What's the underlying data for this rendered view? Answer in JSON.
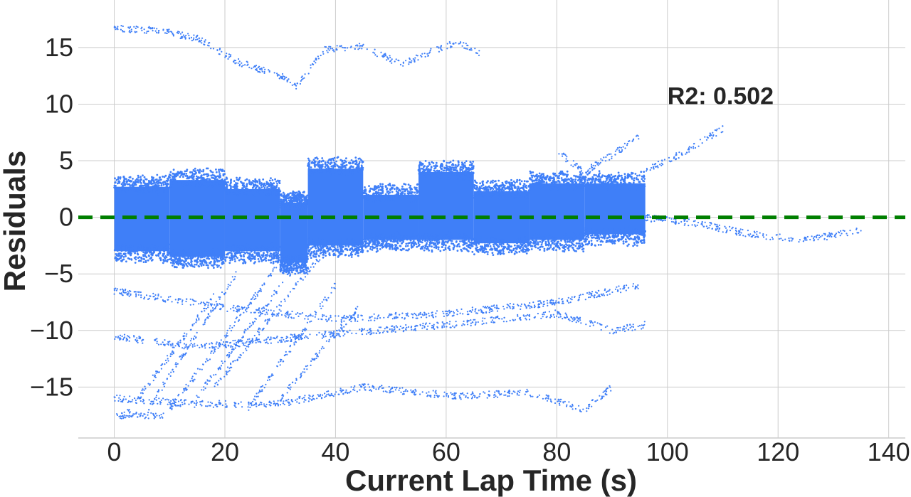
{
  "chart_data": {
    "type": "scatter",
    "title": "",
    "xlabel": "Current Lap Time (s)",
    "ylabel": "Residuals",
    "xlim": [
      -6.5,
      143
    ],
    "ylim": [
      -19.5,
      19.2
    ],
    "xticks": [
      0,
      20,
      40,
      60,
      80,
      100,
      120,
      140
    ],
    "yticks": [
      -15,
      -10,
      -5,
      0,
      5,
      10,
      15
    ],
    "xtick_labels": [
      "0",
      "20",
      "40",
      "60",
      "80",
      "100",
      "120",
      "140"
    ],
    "ytick_labels": [
      "−15",
      "−10",
      "−5",
      "0",
      "5",
      "10",
      "15"
    ],
    "grid": true,
    "reference_line": {
      "y": 0,
      "style": "dashed",
      "color": "#007f00"
    },
    "annotation": {
      "text": "R2: 0.502",
      "x": 100,
      "y": 10
    },
    "point_color": "#3f7ff8",
    "series": [
      {
        "bands": [
          {
            "from": 0,
            "to": 10,
            "lo": -3.5,
            "hi": 3.2
          },
          {
            "from": 10,
            "to": 20,
            "lo": -4.0,
            "hi": 3.8
          },
          {
            "from": 20,
            "to": 30,
            "lo": -3.5,
            "hi": 3.0
          },
          {
            "from": 30,
            "to": 35,
            "lo": -4.5,
            "hi": 1.8
          },
          {
            "from": 35,
            "to": 45,
            "lo": -3.0,
            "hi": 4.8
          },
          {
            "from": 45,
            "to": 55,
            "lo": -2.5,
            "hi": 2.5
          },
          {
            "from": 55,
            "to": 65,
            "lo": -2.5,
            "hi": 4.5
          },
          {
            "from": 65,
            "to": 75,
            "lo": -2.8,
            "hi": 2.8
          },
          {
            "from": 75,
            "to": 85,
            "lo": -2.5,
            "hi": 3.5
          },
          {
            "from": 85,
            "to": 96,
            "lo": -2.0,
            "hi": 3.5
          }
        ],
        "tracks": [
          {
            "x": [
              0,
              8,
              15,
              22,
              30,
              33,
              38,
              45,
              52,
              58,
              62,
              66
            ],
            "y": [
              16.7,
              16.5,
              15.8,
              13.8,
              12.5,
              11.6,
              14.8,
              15.1,
              13.5,
              14.8,
              15.5,
              14.5
            ]
          },
          {
            "x": [
              0,
              15,
              35,
              60,
              80,
              90,
              96
            ],
            "y": [
              -10.5,
              -11.5,
              -10.5,
              -9.5,
              -8.5,
              -10.0,
              -9.5
            ]
          },
          {
            "x": [
              0,
              15,
              30,
              45,
              62,
              75,
              85,
              90
            ],
            "y": [
              -16.0,
              -16.5,
              -16.5,
              -15.0,
              -15.8,
              -15.5,
              -17.0,
              -15.0
            ]
          },
          {
            "x": [
              0,
              20,
              40,
              60,
              80,
              95
            ],
            "y": [
              -6.5,
              -8.0,
              -9.0,
              -8.5,
              -7.5,
              -6.0
            ]
          },
          {
            "x": [
              96,
              102,
              110
            ],
            "y": [
              4.2,
              5.5,
              7.8
            ]
          },
          {
            "x": [
              95,
              105,
              115,
              125,
              135
            ],
            "y": [
              0.0,
              -0.5,
              -1.5,
              -2.0,
              -1.2
            ]
          },
          {
            "x": [
              80,
              85,
              90,
              95
            ],
            "y": [
              5.8,
              4.0,
              5.5,
              7.2
            ]
          },
          {
            "x": [
              0,
              9
            ],
            "y": [
              -17.5,
              -17.5
            ]
          },
          {
            "x": [
              2,
              18
            ],
            "y": [
              -17.5,
              -7.0
            ]
          },
          {
            "x": [
              6,
              22
            ],
            "y": [
              -17.0,
              -5.0
            ]
          },
          {
            "x": [
              10,
              30
            ],
            "y": [
              -17.0,
              -4.0
            ]
          },
          {
            "x": [
              14,
              34
            ],
            "y": [
              -16.5,
              -3.5
            ]
          },
          {
            "x": [
              18,
              38
            ],
            "y": [
              -15.0,
              -3.0
            ]
          },
          {
            "x": [
              24,
              40
            ],
            "y": [
              -17.0,
              -6.0
            ]
          },
          {
            "x": [
              30,
              44
            ],
            "y": [
              -16.0,
              -8.0
            ]
          }
        ]
      }
    ]
  }
}
